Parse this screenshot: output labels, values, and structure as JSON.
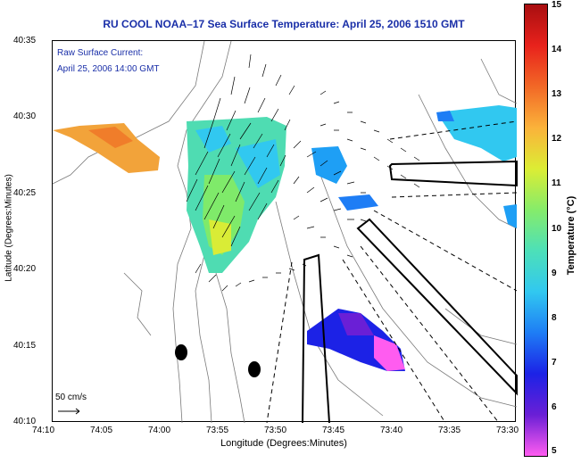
{
  "title": "RU COOL  NOAA–17  Sea Surface Temperature:  April 25, 2006 1510 GMT",
  "overlay": {
    "line1": "Raw Surface Current:",
    "line2": "April 25, 2006 14:00 GMT"
  },
  "x_axis": {
    "label": "Longitude (Degrees:Minutes)",
    "ticks": [
      "74:10",
      "74:05",
      "74:00",
      "73:55",
      "73:50",
      "73:45",
      "73:40",
      "73:35",
      "73:30"
    ]
  },
  "y_axis": {
    "label": "Latitude (Degrees:Minutes)",
    "ticks": [
      "40:35",
      "40:30",
      "40:25",
      "40:20",
      "40:15",
      "40:10"
    ]
  },
  "scale_bar": {
    "label": "50 cm/s"
  },
  "colorbar": {
    "label": "Temperature (°C)",
    "ticks": [
      "15",
      "14",
      "13",
      "12",
      "11",
      "10",
      "9",
      "8",
      "7",
      "6",
      "5"
    ],
    "min": 5,
    "max": 15,
    "colors": [
      "#ff5cf0",
      "#6a1fd6",
      "#1c22e6",
      "#1e7df5",
      "#31c8f0",
      "#4de0b8",
      "#86ec6a",
      "#dced34",
      "#fbb23a",
      "#f26826",
      "#e8221c",
      "#a80e10"
    ]
  }
}
